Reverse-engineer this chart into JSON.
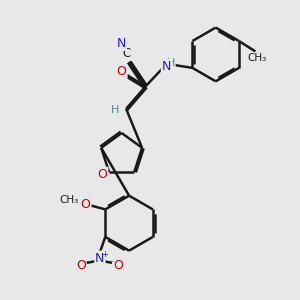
{
  "bg_color": "#e8e8e8",
  "bond_color": "#1a1a1a",
  "bond_width": 1.8,
  "dbo": 0.055,
  "atom_colors": {
    "N": "#2020cc",
    "O": "#cc0000",
    "H": "#4a8a8a",
    "C": "#1a1a1a"
  },
  "fs": 8.5
}
